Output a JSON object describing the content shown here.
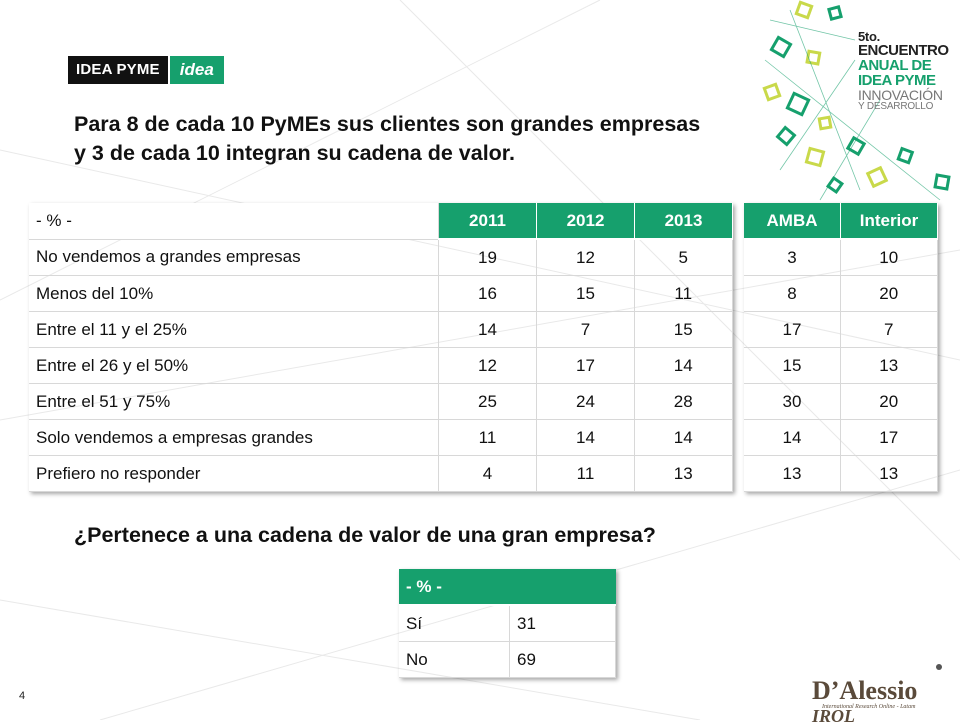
{
  "brand": {
    "ideapyme": "IDEA PYME",
    "idea": "idea"
  },
  "event_logo": {
    "line1": "5to.",
    "line2": "ENCUENTRO",
    "line3a": "ANUAL DE",
    "line3b": "IDEA PYME",
    "line4": "INNOVACIÓN",
    "line5": "Y DESARROLLO"
  },
  "headline": "Para 8 de cada 10 PyMEs sus clientes son grandes empresas y 3 de cada 10 integran su cadena de valor.",
  "main_table": {
    "label_header": "- % -",
    "years": [
      "2011",
      "2012",
      "2013"
    ],
    "rows": [
      {
        "label": "No vendemos a grandes empresas",
        "values": [
          "19",
          "12",
          "5"
        ]
      },
      {
        "label": "Menos del 10%",
        "values": [
          "16",
          "15",
          "11"
        ]
      },
      {
        "label": "Entre el 11 y el 25%",
        "values": [
          "14",
          "7",
          "15"
        ]
      },
      {
        "label": "Entre el 26 y el 50%",
        "values": [
          "12",
          "17",
          "14"
        ]
      },
      {
        "label": "Entre el 51 y 75%",
        "values": [
          "25",
          "24",
          "28"
        ]
      },
      {
        "label": "Solo vendemos a empresas grandes",
        "values": [
          "11",
          "14",
          "14"
        ]
      },
      {
        "label": "Prefiero no responder",
        "values": [
          "4",
          "11",
          "13"
        ]
      }
    ]
  },
  "region_table": {
    "headers": [
      "AMBA",
      "Interior"
    ],
    "rows": [
      [
        "3",
        "10"
      ],
      [
        "8",
        "20"
      ],
      [
        "17",
        "7"
      ],
      [
        "15",
        "13"
      ],
      [
        "30",
        "20"
      ],
      [
        "14",
        "17"
      ],
      [
        "13",
        "13"
      ]
    ]
  },
  "question": "¿Pertenece a una cadena de valor de una gran empresa?",
  "cadena_table": {
    "header": "- % -",
    "rows": [
      {
        "label": "Sí",
        "value": "31"
      },
      {
        "label": "No",
        "value": "69"
      }
    ]
  },
  "page_number": "4",
  "footer_brand": {
    "name": "D’Alessio",
    "irol": "IROL",
    "tagline": "International Research Online - Latam"
  },
  "colors": {
    "accent": "#16a06d",
    "text": "#111111"
  }
}
